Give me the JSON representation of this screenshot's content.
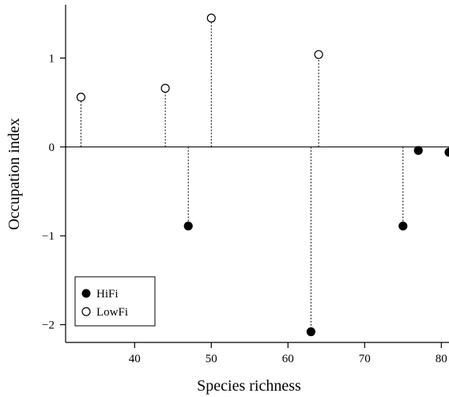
{
  "chart_data": {
    "type": "scatter",
    "subtype": "stem",
    "xlabel": "Species richness",
    "ylabel": "Occupation index",
    "xlim": [
      31,
      81
    ],
    "ylim": [
      -2.2,
      1.6
    ],
    "x_ticks": [
      40,
      50,
      60,
      70,
      80
    ],
    "y_ticks": [
      -2,
      -1,
      0,
      1
    ],
    "x_tick_labels": [
      "40",
      "50",
      "60",
      "70",
      "80"
    ],
    "y_tick_labels": [
      "−2",
      "−1",
      "0",
      "1"
    ],
    "zero_line": true,
    "grid": false,
    "legend": {
      "position": "bottom-left",
      "entries": [
        {
          "label": "HiFi",
          "marker": "filled-circle"
        },
        {
          "label": "LowFi",
          "marker": "open-circle"
        }
      ]
    },
    "series": [
      {
        "name": "HiFi",
        "marker": "filled",
        "color": "#000000",
        "points": [
          {
            "x": 47,
            "y": -0.89
          },
          {
            "x": 63,
            "y": -2.08
          },
          {
            "x": 75,
            "y": -0.89
          },
          {
            "x": 77,
            "y": -0.04
          },
          {
            "x": 81,
            "y": -0.06
          }
        ]
      },
      {
        "name": "LowFi",
        "marker": "open",
        "color": "#000000",
        "points": [
          {
            "x": 33,
            "y": 0.56
          },
          {
            "x": 44,
            "y": 0.66
          },
          {
            "x": 50,
            "y": 1.45
          },
          {
            "x": 64,
            "y": 1.04
          }
        ]
      }
    ]
  }
}
